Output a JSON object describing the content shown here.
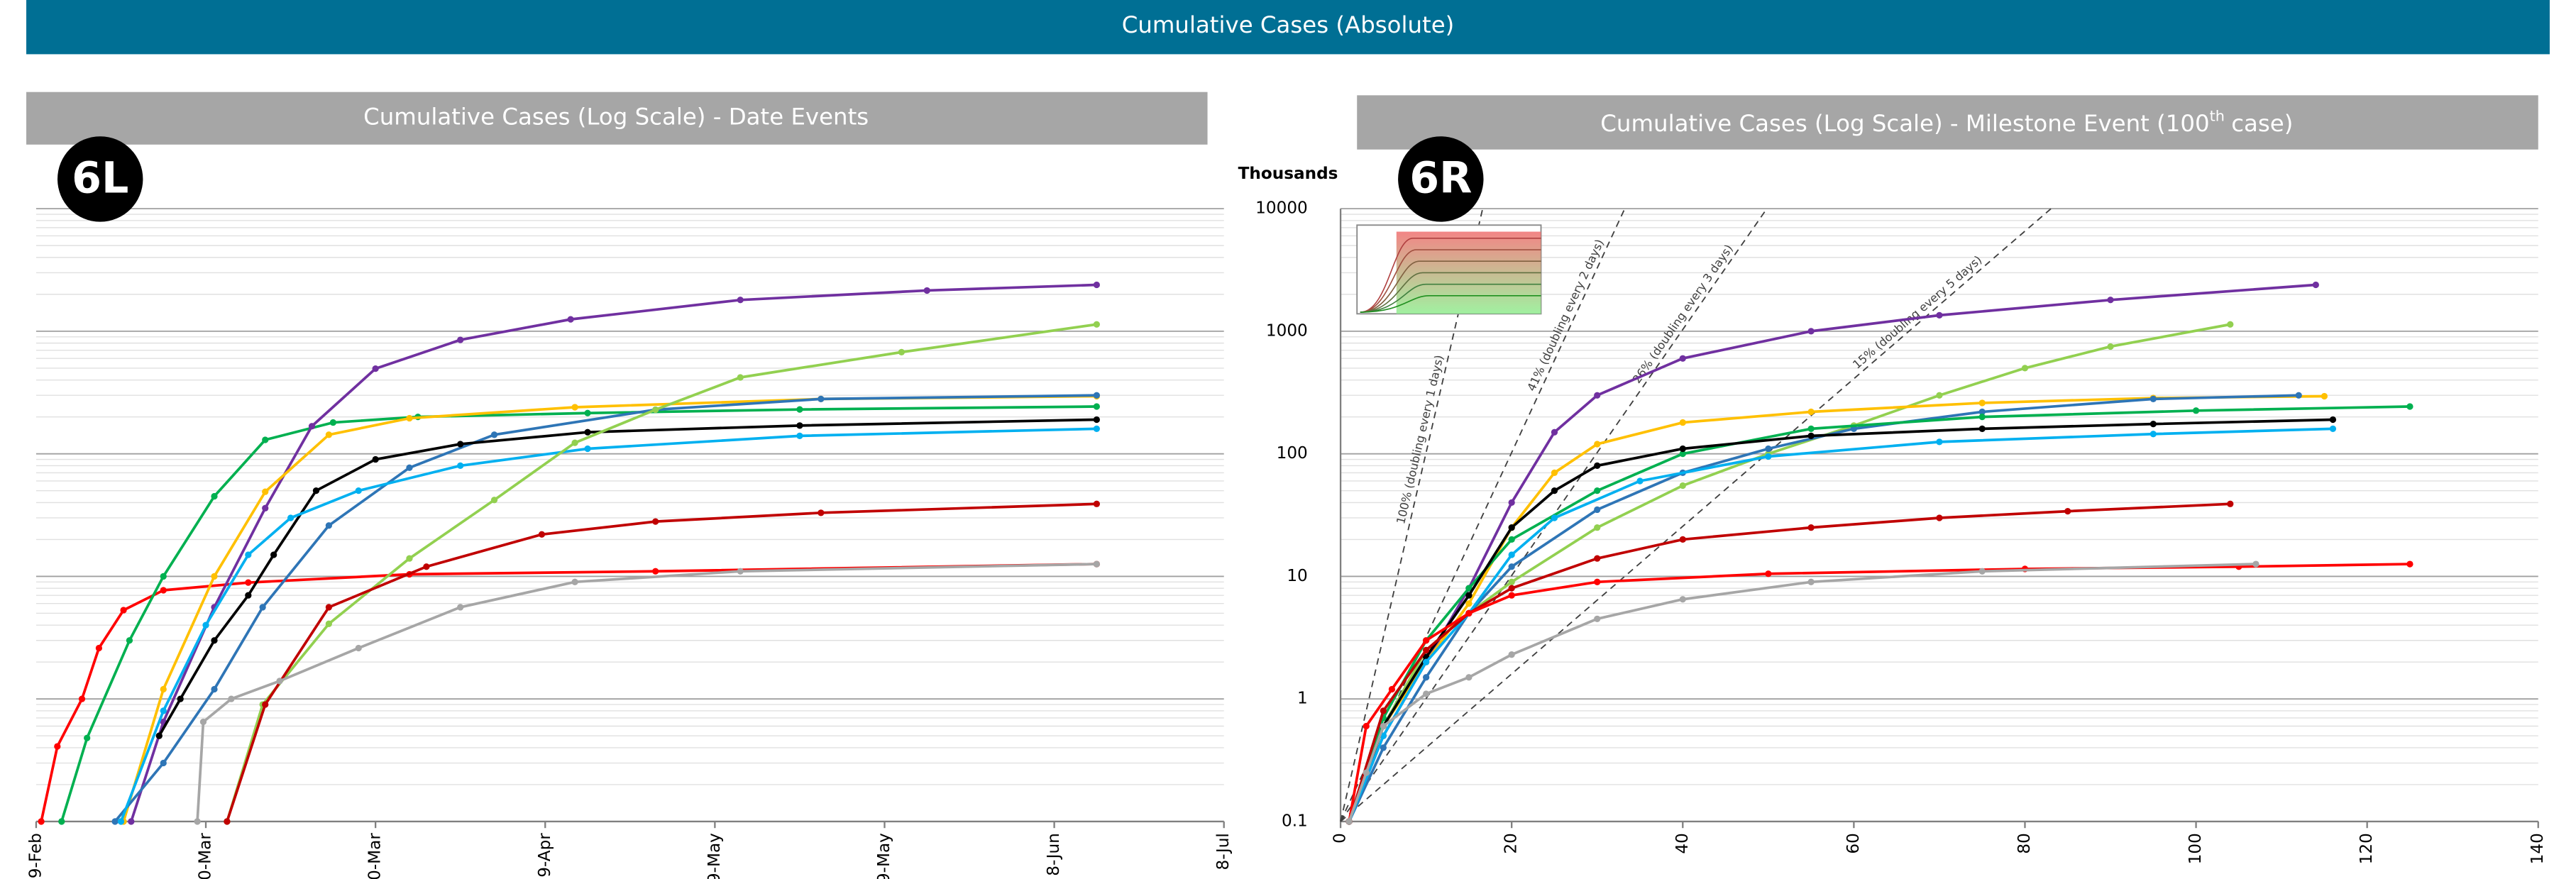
{
  "header": {
    "title": "Cumulative Cases (Absolute)"
  },
  "chart_data": [
    {
      "type": "line",
      "badge": "6L",
      "title": "Cumulative Cases (Log Scale) - Date Events",
      "xlim": [
        0,
        140
      ],
      "xticks": [
        {
          "value": 0,
          "label": "9-Feb"
        },
        {
          "value": 20,
          "label": "0-Mar"
        },
        {
          "value": 40,
          "label": "0-Mar"
        },
        {
          "value": 60,
          "label": "9-Apr"
        },
        {
          "value": 80,
          "label": "9-May"
        },
        {
          "value": 100,
          "label": "9-May"
        },
        {
          "value": 120,
          "label": "8-Jun"
        },
        {
          "value": 140,
          "label": "8-Jul"
        }
      ],
      "ylim": [
        0.1,
        10000
      ],
      "yticks": [
        0.1,
        1,
        10,
        100,
        1000,
        10000
      ],
      "yscale": "log",
      "grid": true,
      "series": [
        {
          "color": "#ff0000",
          "x": [
            0.6,
            2.5,
            5.4,
            7.4,
            10.3,
            15,
            25,
            44,
            73,
            125
          ],
          "values": [
            0.1,
            0.41,
            1,
            2.6,
            5.3,
            7.7,
            8.9,
            10.4,
            11,
            12.6
          ]
        },
        {
          "color": "#00b050",
          "x": [
            3,
            6,
            11,
            15,
            21,
            27,
            35,
            45,
            65,
            90,
            125
          ],
          "values": [
            0.1,
            0.48,
            3,
            10,
            45,
            130,
            180,
            200,
            215,
            230,
            243
          ]
        },
        {
          "color": "#7030a0",
          "x": [
            11.2,
            15,
            21,
            27,
            32.5,
            40,
            50,
            63,
            83,
            105,
            125
          ],
          "values": [
            0.1,
            0.65,
            5.6,
            36,
            168,
            495,
            850,
            1250,
            1800,
            2150,
            2390
          ]
        },
        {
          "color": "#ffc000",
          "x": [
            10.3,
            15,
            21,
            27,
            34.5,
            44,
            63.5,
            92.5,
            125
          ],
          "values": [
            0.1,
            1.2,
            10,
            49,
            143,
            195,
            240,
            280,
            295
          ]
        },
        {
          "color": "#2e75b6",
          "x": [
            9.3,
            15,
            21,
            26.7,
            34.5,
            44,
            54,
            73,
            92.5,
            125
          ],
          "values": [
            0.1,
            0.3,
            1.2,
            5.6,
            26,
            77,
            143,
            229,
            280,
            300
          ]
        },
        {
          "color": "#000000",
          "x": [
            14.5,
            17,
            21,
            25,
            28,
            33,
            40,
            50,
            65,
            90,
            125
          ],
          "values": [
            0.5,
            1,
            3,
            7,
            15,
            50,
            90,
            120,
            150,
            170,
            190
          ]
        },
        {
          "color": "#00b0f0",
          "x": [
            10,
            15,
            20,
            25,
            30,
            38,
            50,
            65,
            90,
            125
          ],
          "values": [
            0.1,
            0.8,
            4,
            15,
            30,
            50,
            80,
            110,
            140,
            160
          ]
        },
        {
          "color": "#92d050",
          "x": [
            22.5,
            26.7,
            34.5,
            44,
            54,
            63.5,
            73,
            83,
            102,
            125
          ],
          "values": [
            0.1,
            0.9,
            4.1,
            14,
            42,
            123,
            229,
            420,
            675,
            1137
          ]
        },
        {
          "color": "#c00000",
          "x": [
            22.5,
            27,
            34.5,
            46,
            59.6,
            73,
            92.5,
            125
          ],
          "values": [
            0.1,
            0.9,
            5.6,
            12,
            22,
            28,
            33,
            39
          ]
        },
        {
          "color": "#a6a6a6",
          "x": [
            19,
            19.7,
            23,
            28.7,
            38,
            50,
            63.5,
            83,
            125
          ],
          "values": [
            0.1,
            0.65,
            1,
            1.4,
            2.6,
            5.6,
            9,
            11,
            12.6
          ]
        }
      ]
    },
    {
      "type": "line",
      "badge": "6R",
      "title": "Cumulative Cases (Log Scale) - Milestone Event (100",
      "title_sup": "th",
      "title_end": "case)",
      "y_label": "Thousands",
      "xlim": [
        0,
        140
      ],
      "xticks": [
        0,
        20,
        40,
        60,
        80,
        100,
        120,
        140
      ],
      "ylim": [
        0.1,
        10000
      ],
      "yticks": [
        0.1,
        1,
        10,
        100,
        1000,
        10000
      ],
      "yscale": "log",
      "grid": true,
      "reference_lines": [
        {
          "label": "100% (doubling every 1 days)",
          "doubling_days": 1
        },
        {
          "label": "41% (doubling every 2 days)",
          "doubling_days": 2
        },
        {
          "label": "26% (doubling every 3 days)",
          "doubling_days": 3
        },
        {
          "label": "15% (doubling every 5 days)",
          "doubling_days": 5
        }
      ],
      "series": [
        {
          "color": "#7030a0",
          "x": [
            1,
            5,
            10,
            15,
            20,
            25,
            30,
            40,
            55,
            70,
            90,
            114
          ],
          "values": [
            0.1,
            0.5,
            2,
            8,
            40,
            150,
            300,
            600,
            1000,
            1350,
            1800,
            2390
          ]
        },
        {
          "color": "#92d050",
          "x": [
            1,
            5,
            10,
            15,
            20,
            30,
            40,
            50,
            60,
            70,
            80,
            90,
            104
          ],
          "values": [
            0.1,
            0.6,
            2.5,
            5,
            9,
            25,
            55,
            100,
            170,
            300,
            500,
            750,
            1137
          ]
        },
        {
          "color": "#ffc000",
          "x": [
            1,
            5,
            10,
            15,
            20,
            25,
            30,
            40,
            55,
            75,
            95,
            115
          ],
          "values": [
            0.1,
            0.6,
            2,
            6,
            25,
            70,
            120,
            180,
            220,
            260,
            285,
            295
          ]
        },
        {
          "color": "#2e75b6",
          "x": [
            1,
            5,
            10,
            15,
            20,
            30,
            40,
            50,
            60,
            75,
            95,
            112
          ],
          "values": [
            0.1,
            0.4,
            1.5,
            5,
            12,
            35,
            70,
            110,
            160,
            220,
            280,
            300
          ]
        },
        {
          "color": "#00b050",
          "x": [
            1,
            5,
            10,
            15,
            20,
            30,
            40,
            55,
            75,
            100,
            125
          ],
          "values": [
            0.1,
            0.7,
            3,
            8,
            20,
            50,
            100,
            160,
            200,
            225,
            243
          ]
        },
        {
          "color": "#000000",
          "x": [
            1,
            5,
            10,
            15,
            20,
            25,
            30,
            40,
            55,
            75,
            95,
            116
          ],
          "values": [
            0.1,
            0.6,
            2.2,
            7,
            25,
            50,
            80,
            110,
            140,
            160,
            175,
            190
          ]
        },
        {
          "color": "#00b0f0",
          "x": [
            1,
            5,
            10,
            15,
            20,
            25,
            35,
            50,
            70,
            95,
            116
          ],
          "values": [
            0.1,
            0.5,
            2,
            5,
            15,
            30,
            60,
            95,
            125,
            145,
            160
          ]
        },
        {
          "color": "#c00000",
          "x": [
            1,
            5,
            10,
            15,
            20,
            30,
            40,
            55,
            70,
            85,
            104
          ],
          "values": [
            0.1,
            0.8,
            2.5,
            5,
            8,
            14,
            20,
            25,
            30,
            34,
            39
          ]
        },
        {
          "color": "#ff0000",
          "x": [
            1,
            3,
            6,
            10,
            15,
            20,
            30,
            50,
            80,
            105,
            125
          ],
          "values": [
            0.1,
            0.6,
            1.2,
            3,
            5,
            7,
            9,
            10.5,
            11.5,
            12,
            12.6
          ]
        },
        {
          "color": "#a6a6a6",
          "x": [
            1,
            3,
            5,
            10,
            15,
            20,
            30,
            40,
            55,
            75,
            107
          ],
          "values": [
            0.1,
            0.25,
            0.6,
            1.1,
            1.5,
            2.3,
            4.5,
            6.5,
            9,
            11,
            12.6
          ]
        }
      ]
    }
  ]
}
